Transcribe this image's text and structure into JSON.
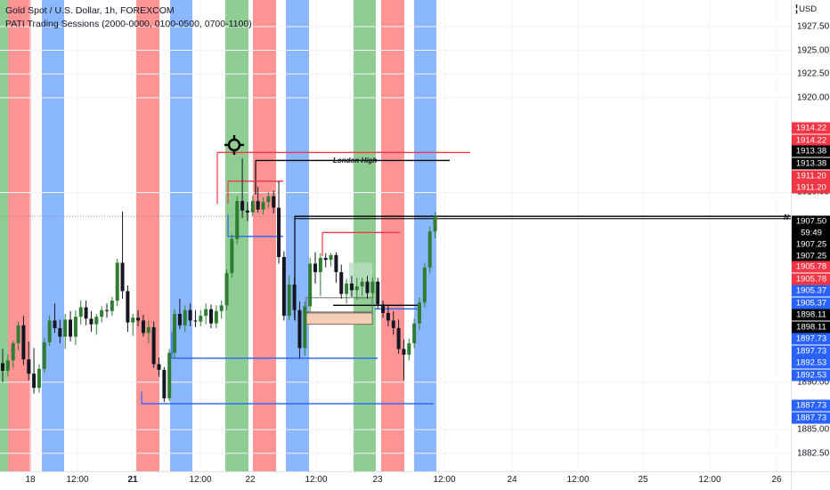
{
  "legend": {
    "symbol_line": "Gold Spot / U.S. Dollar, 1h, FOREXCOM",
    "indicator_line": "PATI Trading Sessions (2000-0000, 0100-0500, 0700-1100)"
  },
  "currency": "USD",
  "price_ticks": [
    "1927.50",
    "1925.00",
    "1922.50",
    "1920.00",
    "1910.00",
    "1890.00",
    "1885.00",
    "1882.50"
  ],
  "price_labels": [
    {
      "text": "1914.22",
      "color": "#f23645"
    },
    {
      "text": "1914.22",
      "color": "#f23645"
    },
    {
      "text": "1913.38",
      "color": "#000000"
    },
    {
      "text": "1913.38",
      "color": "#000000"
    },
    {
      "text": "1911.20",
      "color": "#f23645"
    },
    {
      "text": "1911.20",
      "color": "#f23645"
    },
    {
      "text": "1907.50",
      "color": "#000000"
    },
    {
      "text": "59:49",
      "color": "#000000"
    },
    {
      "text": "1907.25",
      "color": "#000000"
    },
    {
      "text": "1907.25",
      "color": "#000000"
    },
    {
      "text": "1905.78",
      "color": "#f23645"
    },
    {
      "text": "1905.78",
      "color": "#f23645"
    },
    {
      "text": "1905.37",
      "color": "#2962ff"
    },
    {
      "text": "1905.37",
      "color": "#2962ff"
    },
    {
      "text": "1898.11",
      "color": "#000000"
    },
    {
      "text": "1898.11",
      "color": "#000000"
    },
    {
      "text": "1897.73",
      "color": "#2962ff"
    },
    {
      "text": "1897.73",
      "color": "#2962ff"
    },
    {
      "text": "1892.53",
      "color": "#2962ff"
    },
    {
      "text": "1892.53",
      "color": "#2962ff"
    },
    {
      "text": "1887.73",
      "color": "#2962ff"
    },
    {
      "text": "1887.73",
      "color": "#2962ff"
    }
  ],
  "time_ticks": [
    {
      "text": "18",
      "day": false
    },
    {
      "text": "12:00",
      "day": false
    },
    {
      "text": "21",
      "day": true
    },
    {
      "text": "12:00",
      "day": false
    },
    {
      "text": "22",
      "day": false
    },
    {
      "text": "12:00",
      "day": false
    },
    {
      "text": "23",
      "day": false
    },
    {
      "text": "12:00",
      "day": false
    },
    {
      "text": "24",
      "day": false
    },
    {
      "text": "12:00",
      "day": false
    },
    {
      "text": "25",
      "day": false
    },
    {
      "text": "12:00",
      "day": false
    },
    {
      "text": "26",
      "day": false
    }
  ],
  "annotations": {
    "london_high": "London High",
    "now_marker": "N"
  },
  "colors": {
    "up": "#26a69a",
    "up_body": "#2e7d32",
    "down": "#131722",
    "asia": "#ff5252",
    "london": "#448aff",
    "newyork": "#4caf50",
    "red_label": "#f23645",
    "blue_label": "#2962ff"
  },
  "chart_data": {
    "type": "candlestick",
    "timeframe": "1h",
    "symbol": "Gold Spot / U.S. Dollar",
    "ylim": [
      1880.6,
      1930.3
    ],
    "x_ticks": [
      "18",
      "12:00",
      "21",
      "12:00",
      "22",
      "12:00",
      "23",
      "12:00",
      "24",
      "12:00",
      "25",
      "12:00",
      "26"
    ],
    "ohlc": [
      [
        1892.0,
        1893.5,
        1890.0,
        1891.2
      ],
      [
        1891.2,
        1892.9,
        1890.6,
        1892.3
      ],
      [
        1892.3,
        1894.4,
        1891.5,
        1894.1
      ],
      [
        1894.1,
        1896.4,
        1893.4,
        1896.0
      ],
      [
        1896.0,
        1897.0,
        1891.8,
        1892.4
      ],
      [
        1892.4,
        1894.3,
        1890.2,
        1890.9
      ],
      [
        1890.9,
        1893.6,
        1888.8,
        1889.4
      ],
      [
        1889.4,
        1891.9,
        1888.9,
        1891.4
      ],
      [
        1891.4,
        1894.7,
        1891.0,
        1894.2
      ],
      [
        1894.2,
        1897.0,
        1893.8,
        1896.5
      ],
      [
        1896.5,
        1898.3,
        1895.2,
        1895.7
      ],
      [
        1895.7,
        1896.6,
        1894.1,
        1894.8
      ],
      [
        1894.8,
        1897.2,
        1893.5,
        1896.6
      ],
      [
        1896.6,
        1897.5,
        1894.3,
        1894.8
      ],
      [
        1894.8,
        1897.6,
        1893.9,
        1896.9
      ],
      [
        1896.9,
        1898.6,
        1896.1,
        1897.9
      ],
      [
        1897.9,
        1898.6,
        1896.0,
        1896.7
      ],
      [
        1896.7,
        1897.5,
        1895.3,
        1896.1
      ],
      [
        1896.1,
        1897.2,
        1895.0,
        1896.9
      ],
      [
        1896.9,
        1898.0,
        1896.3,
        1897.6
      ],
      [
        1897.6,
        1898.3,
        1896.8,
        1897.5
      ],
      [
        1897.5,
        1899.0,
        1897.0,
        1898.6
      ],
      [
        1898.6,
        1903.0,
        1898.0,
        1902.6
      ],
      [
        1902.6,
        1908.0,
        1898.8,
        1899.6
      ],
      [
        1899.6,
        1900.2,
        1895.3,
        1896.3
      ],
      [
        1896.3,
        1897.2,
        1894.9,
        1896.8
      ],
      [
        1896.8,
        1897.6,
        1895.9,
        1896.5
      ],
      [
        1896.5,
        1897.1,
        1894.8,
        1895.2
      ],
      [
        1895.2,
        1896.5,
        1894.1,
        1895.8
      ],
      [
        1895.8,
        1896.4,
        1891.5,
        1891.9
      ],
      [
        1891.9,
        1892.6,
        1890.6,
        1891.3
      ],
      [
        1891.3,
        1891.6,
        1887.9,
        1888.3
      ],
      [
        1888.3,
        1893.5,
        1888.0,
        1893.1
      ],
      [
        1893.1,
        1897.7,
        1892.5,
        1897.2
      ],
      [
        1897.2,
        1898.8,
        1895.6,
        1896.0
      ],
      [
        1896.0,
        1898.1,
        1895.3,
        1897.6
      ],
      [
        1897.6,
        1898.3,
        1895.9,
        1896.5
      ],
      [
        1896.5,
        1897.6,
        1895.8,
        1896.4
      ],
      [
        1896.4,
        1897.6,
        1895.9,
        1897.0
      ],
      [
        1897.0,
        1898.3,
        1896.1,
        1897.7
      ],
      [
        1897.7,
        1898.2,
        1895.7,
        1896.2
      ],
      [
        1896.2,
        1898.1,
        1895.7,
        1897.5
      ],
      [
        1897.5,
        1898.6,
        1896.7,
        1898.1
      ],
      [
        1898.1,
        1901.9,
        1897.6,
        1901.5
      ],
      [
        1901.5,
        1905.6,
        1901.0,
        1905.1
      ],
      [
        1905.1,
        1909.6,
        1904.5,
        1909.1
      ],
      [
        1909.1,
        1913.6,
        1907.3,
        1908.1
      ],
      [
        1908.1,
        1909.0,
        1907.0,
        1907.9
      ],
      [
        1907.9,
        1909.7,
        1907.5,
        1909.1
      ],
      [
        1909.1,
        1910.6,
        1907.9,
        1908.2
      ],
      [
        1908.2,
        1909.5,
        1907.7,
        1909.0
      ],
      [
        1909.0,
        1910.1,
        1908.3,
        1909.6
      ],
      [
        1909.6,
        1910.2,
        1907.8,
        1908.4
      ],
      [
        1908.4,
        1911.2,
        1902.5,
        1903.2
      ],
      [
        1903.2,
        1903.8,
        1896.5,
        1897.0
      ],
      [
        1897.0,
        1901.2,
        1896.5,
        1900.3
      ],
      [
        1900.3,
        1901.0,
        1896.8,
        1897.6
      ],
      [
        1897.6,
        1898.5,
        1892.5,
        1893.6
      ],
      [
        1893.6,
        1898.5,
        1892.8,
        1898.0
      ],
      [
        1898.0,
        1903.1,
        1897.4,
        1902.5
      ],
      [
        1902.5,
        1903.7,
        1900.4,
        1901.6
      ],
      [
        1901.6,
        1903.6,
        1899.1,
        1903.1
      ],
      [
        1903.1,
        1903.6,
        1902.1,
        1902.9
      ],
      [
        1902.9,
        1903.6,
        1902.2,
        1903.4
      ],
      [
        1903.4,
        1903.7,
        1900.5,
        1901.6
      ],
      [
        1901.6,
        1902.4,
        1898.8,
        1899.3
      ],
      [
        1899.3,
        1900.9,
        1898.3,
        1900.4
      ],
      [
        1900.4,
        1901.2,
        1899.0,
        1899.7
      ],
      [
        1899.7,
        1901.0,
        1898.7,
        1900.1
      ],
      [
        1900.1,
        1901.0,
        1899.1,
        1900.6
      ],
      [
        1900.6,
        1901.2,
        1898.8,
        1899.4
      ],
      [
        1899.4,
        1901.1,
        1898.9,
        1900.6
      ],
      [
        1900.6,
        1901.0,
        1897.8,
        1898.2
      ],
      [
        1898.2,
        1898.6,
        1896.8,
        1897.3
      ],
      [
        1897.3,
        1898.2,
        1895.9,
        1896.5
      ],
      [
        1896.5,
        1897.5,
        1895.0,
        1895.7
      ],
      [
        1895.7,
        1896.6,
        1893.0,
        1893.5
      ],
      [
        1893.5,
        1894.5,
        1890.2,
        1892.9
      ],
      [
        1892.9,
        1894.6,
        1892.3,
        1894.1
      ],
      [
        1894.1,
        1896.7,
        1893.6,
        1896.2
      ],
      [
        1896.2,
        1898.9,
        1895.5,
        1898.4
      ],
      [
        1898.4,
        1902.6,
        1897.9,
        1902.1
      ],
      [
        1902.1,
        1906.4,
        1901.5,
        1905.9
      ],
      [
        1905.9,
        1907.9,
        1905.2,
        1907.5
      ]
    ]
  }
}
